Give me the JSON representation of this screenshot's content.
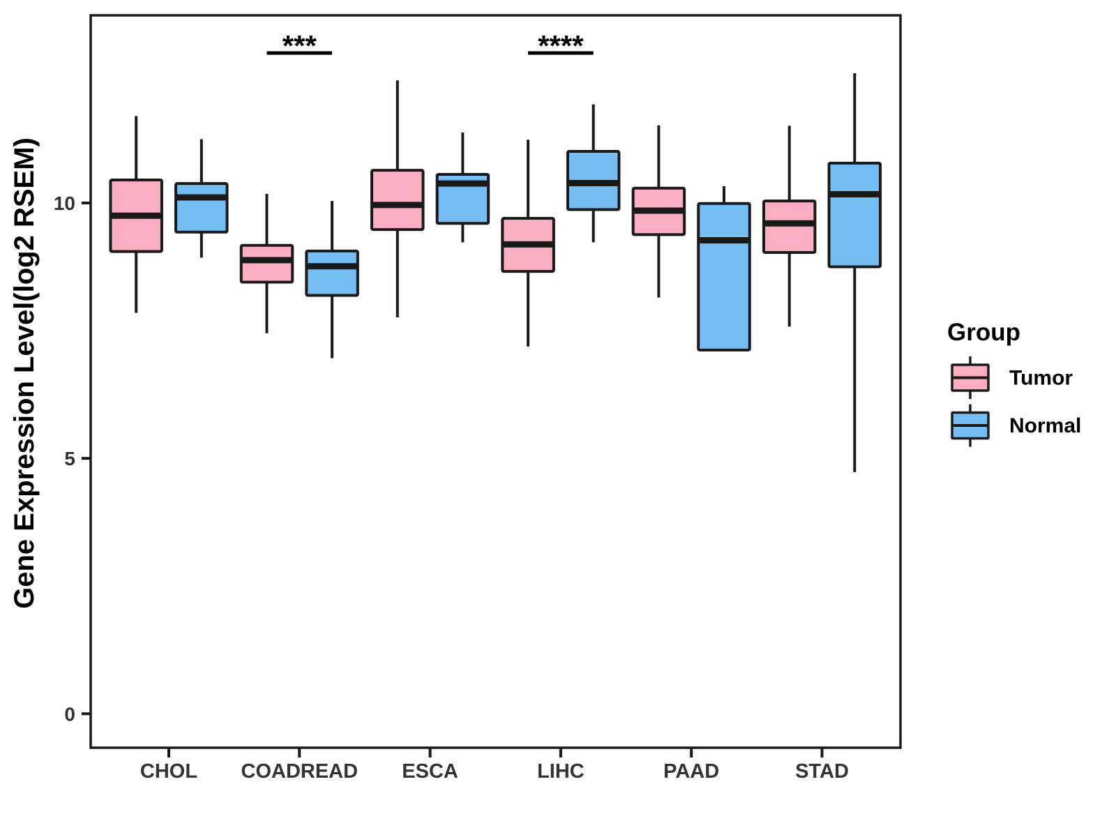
{
  "figure": {
    "ylabel": "Gene Expression Level(log2 RSEM)",
    "legend": {
      "title": "Group",
      "entries": [
        {
          "label": "Tumor",
          "color": "#FAAEC0"
        },
        {
          "label": "Normal",
          "color": "#74BEF4"
        }
      ]
    }
  },
  "colors": {
    "tumor_fill": "#FAAEC0",
    "normal_fill": "#74BEF4",
    "box_stroke": "#1A1A1A",
    "axis_stroke": "#1A1A1A",
    "tick_text": "#333333",
    "label_text": "#000000",
    "annotation": "#000000"
  },
  "chart_data": {
    "type": "boxplot",
    "title": "",
    "xlabel": "",
    "ylabel": "Gene Expression Level(log2 RSEM)",
    "categories": [
      "CHOL",
      "COADREAD",
      "ESCA",
      "LIHC",
      "PAAD",
      "STAD"
    ],
    "groups": [
      "Tumor",
      "Normal"
    ],
    "yticks": [
      0,
      5,
      10
    ],
    "ylim": [
      -0.66,
      13.67
    ],
    "grid": false,
    "legend_position": "right",
    "series": [
      {
        "name": "Tumor",
        "color": "#FAAEC0",
        "boxes": [
          {
            "category": "CHOL",
            "low": 7.85,
            "q1": 9.05,
            "median": 9.75,
            "q3": 10.45,
            "high": 11.7
          },
          {
            "category": "COADREAD",
            "low": 7.45,
            "q1": 8.45,
            "median": 8.88,
            "q3": 9.17,
            "high": 10.18
          },
          {
            "category": "ESCA",
            "low": 7.76,
            "q1": 9.48,
            "median": 9.96,
            "q3": 10.64,
            "high": 12.4
          },
          {
            "category": "LIHC",
            "low": 7.19,
            "q1": 8.66,
            "median": 9.19,
            "q3": 9.7,
            "high": 11.24
          },
          {
            "category": "PAAD",
            "low": 8.15,
            "q1": 9.38,
            "median": 9.85,
            "q3": 10.29,
            "high": 11.52
          },
          {
            "category": "STAD",
            "low": 7.58,
            "q1": 9.03,
            "median": 9.6,
            "q3": 10.04,
            "high": 11.51
          }
        ]
      },
      {
        "name": "Normal",
        "color": "#74BEF4",
        "boxes": [
          {
            "category": "CHOL",
            "low": 8.93,
            "q1": 9.43,
            "median": 10.11,
            "q3": 10.38,
            "high": 11.25
          },
          {
            "category": "COADREAD",
            "low": 6.96,
            "q1": 8.19,
            "median": 8.76,
            "q3": 9.06,
            "high": 10.04
          },
          {
            "category": "ESCA",
            "low": 9.23,
            "q1": 9.6,
            "median": 10.38,
            "q3": 10.56,
            "high": 11.38
          },
          {
            "category": "LIHC",
            "low": 9.23,
            "q1": 9.87,
            "median": 10.39,
            "q3": 11.01,
            "high": 11.93
          },
          {
            "category": "PAAD",
            "low": 7.12,
            "q1": 7.12,
            "median": 9.27,
            "q3": 9.99,
            "high": 10.33
          },
          {
            "category": "STAD",
            "low": 4.73,
            "q1": 8.75,
            "median": 10.17,
            "q3": 10.78,
            "high": 12.54
          }
        ]
      }
    ],
    "annotations": [
      {
        "category": "COADREAD",
        "label": "***"
      },
      {
        "category": "LIHC",
        "label": "****"
      }
    ]
  }
}
